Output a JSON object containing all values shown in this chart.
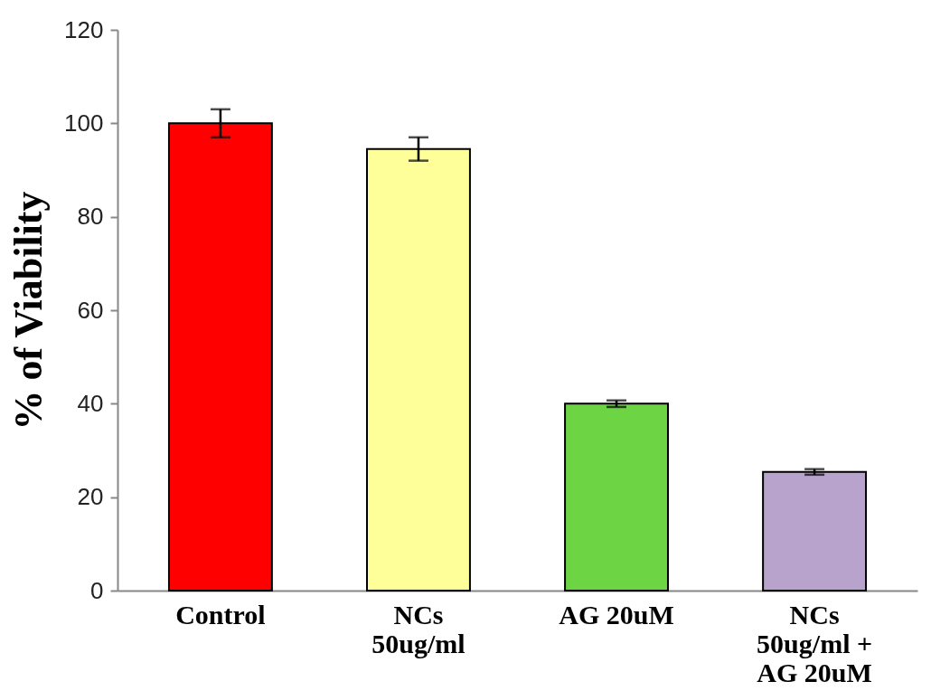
{
  "chart_data": {
    "type": "bar",
    "ylabel": "% of Viability",
    "categories": [
      "Control",
      "NCs 50ug/ml",
      "AG 20uM",
      "NCs 50ug/ml + AG 20uM"
    ],
    "values": [
      100,
      94.5,
      40,
      25.4
    ],
    "errors": [
      3,
      2.5,
      0.7,
      0.6
    ],
    "colors": [
      "#ff0000",
      "#ffff99",
      "#6dd544",
      "#b7a3cc"
    ],
    "ylim": [
      0,
      120
    ],
    "yticks": [
      0,
      20,
      40,
      60,
      80,
      100,
      120
    ],
    "grid": false
  }
}
